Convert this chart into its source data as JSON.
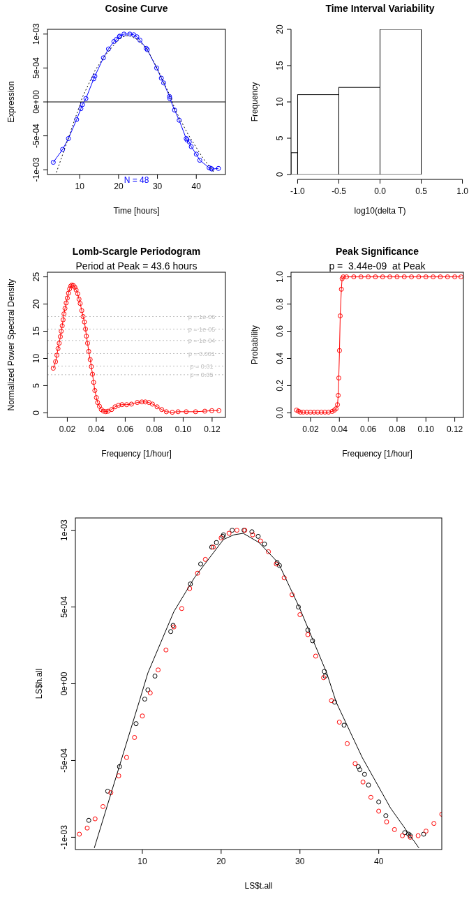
{
  "chart_data": [
    {
      "type": "line",
      "title": "Cosine Curve",
      "xlabel": "Time [hours]",
      "ylabel": "Expression",
      "annotations": [
        "N = 48"
      ],
      "xlim": [
        1.7,
        47.5
      ],
      "xticks": [
        10,
        20,
        30,
        40
      ],
      "ylim": [
        -0.00107,
        0.00107
      ],
      "yticks": [
        {
          "value": -0.001,
          "label": "-1e-03"
        },
        {
          "value": -0.0005,
          "label": "-5e-04"
        },
        {
          "value": 0,
          "label": "0e+00"
        },
        {
          "value": 0.0005,
          "label": "5e-04"
        },
        {
          "value": 0.001,
          "label": "1e-03"
        }
      ],
      "ref_lines": [
        {
          "axis": "y",
          "value": 0,
          "color": "#000000"
        }
      ],
      "series": [
        {
          "color": "#0000ff",
          "marker": "circle",
          "x": [
            3.2,
            5.6,
            7.1,
            9.2,
            10.3,
            10.7,
            11.6,
            13.6,
            13.9,
            16.1,
            17.4,
            18.8,
            19.4,
            20.2,
            20.3,
            21.4,
            22.9,
            23.9,
            24.7,
            25.5,
            27.1,
            27.4,
            29.8,
            31.0,
            31.6,
            33.1,
            33.2,
            34.4,
            35.6,
            37.4,
            37.6,
            38.2,
            38.7,
            40.0,
            40.9,
            43.3,
            43.8,
            44.0,
            45.7
          ],
          "values": [
            -0.00089,
            -0.0007,
            -0.00054,
            -0.00026,
            -0.0001,
            -4e-05,
            5e-05,
            0.00034,
            0.00038,
            0.00065,
            0.00078,
            0.00089,
            0.00092,
            0.00096,
            0.00097,
            0.001,
            0.001,
            0.00099,
            0.00096,
            0.00091,
            0.00079,
            0.00077,
            0.0005,
            0.00035,
            0.00028,
            8e-05,
            5e-05,
            -0.00012,
            -0.00027,
            -0.00054,
            -0.00056,
            -0.00059,
            -0.00066,
            -0.00077,
            -0.00086,
            -0.00097,
            -0.00098,
            -0.00099,
            -0.00098
          ]
        },
        {
          "color": "#000000",
          "line_style": "dotted",
          "x": [
            4.0,
            9.7,
            10.7,
            14.0,
            16.6,
            20.3,
            21.6,
            22.8,
            24.8,
            27.2,
            29.9,
            33.4,
            34.6,
            37.9,
            40.3,
            41.5,
            44.7
          ],
          "values": [
            -0.00104,
            -0.0001,
            7e-05,
            0.00047,
            0.00069,
            0.00094,
            0.00097,
            0.00098,
            0.00092,
            0.00079,
            0.0005,
            7e-05,
            -0.00012,
            -0.00048,
            -0.0007,
            -0.00081,
            -0.00105
          ]
        }
      ]
    },
    {
      "type": "histogram",
      "title": "Time Interval Variability",
      "xlabel": "log10(delta T)",
      "ylabel": "Frequency",
      "xlim": [
        -1.08,
        1.08
      ],
      "xticks": [
        {
          "value": -1,
          "label": "-1.0"
        },
        -0.5,
        {
          "value": 0,
          "label": "0.0"
        },
        0.5,
        {
          "value": 1,
          "label": "1.0"
        }
      ],
      "ylim": [
        0,
        20
      ],
      "yticks": [
        0,
        5,
        10,
        15,
        20
      ],
      "bins": [
        -1.08,
        -1,
        -0.5,
        0,
        0.5
      ],
      "values": [
        3,
        11,
        12,
        20
      ],
      "color": "#ffffff"
    },
    {
      "type": "line",
      "title": "Lomb-Scargle Periodogram",
      "subtitle": "Period at Peak = 43.6 hours",
      "xlabel": "Frequency [1/hour]",
      "ylabel": "Normalized Power Spectral Density",
      "xlim": [
        0.0063,
        0.1292
      ],
      "xticks": [
        0.02,
        0.04,
        0.06,
        0.08,
        {
          "value": 0.1,
          "label": "0.10"
        },
        0.12
      ],
      "ylim": [
        -0.85,
        25.85
      ],
      "yticks": [
        0,
        5,
        10,
        15,
        20,
        25
      ],
      "ref_lines": [
        {
          "axis": "y",
          "value": 17.7,
          "color": "#bebebe",
          "line_style": "dotted"
        },
        {
          "axis": "y",
          "value": 15.4,
          "color": "#bebebe",
          "line_style": "dotted"
        },
        {
          "axis": "y",
          "value": 13.3,
          "color": "#bebebe",
          "line_style": "dotted"
        },
        {
          "axis": "y",
          "value": 10.9,
          "color": "#bebebe",
          "line_style": "dotted"
        },
        {
          "axis": "y",
          "value": 8.6,
          "color": "#bebebe",
          "line_style": "dotted"
        },
        {
          "axis": "y",
          "value": 7.0,
          "color": "#bebebe",
          "line_style": "dotted"
        }
      ],
      "annotations": [
        {
          "text": "p = 1e-06",
          "y": 17.7
        },
        {
          "text": "p = 1e-05",
          "y": 15.4
        },
        {
          "text": "p = 1e-04",
          "y": 13.3
        },
        {
          "text": "p = 0.001",
          "y": 10.9
        },
        {
          "text": "p = 0.01",
          "y": 8.6
        },
        {
          "text": "p = 0.05",
          "y": 7.0
        }
      ],
      "series": [
        {
          "color": "#ff0000",
          "marker": "circle",
          "x": [
            0.0103,
            0.0119,
            0.0128,
            0.0136,
            0.0144,
            0.0152,
            0.0158,
            0.0165,
            0.0171,
            0.0177,
            0.0184,
            0.0192,
            0.02,
            0.0208,
            0.0216,
            0.0224,
            0.0232,
            0.0242,
            0.0252,
            0.0261,
            0.0272,
            0.0281,
            0.0289,
            0.03,
            0.0309,
            0.0318,
            0.0326,
            0.0332,
            0.034,
            0.0348,
            0.0358,
            0.0366,
            0.0374,
            0.0382,
            0.039,
            0.0401,
            0.0409,
            0.0422,
            0.0435,
            0.045,
            0.0466,
            0.0482,
            0.0506,
            0.053,
            0.0554,
            0.0578,
            0.061,
            0.0643,
            0.0683,
            0.0715,
            0.0739,
            0.0764,
            0.0788,
            0.082,
            0.0852,
            0.0884,
            0.0925,
            0.0965,
            0.1021,
            0.1086,
            0.115,
            0.1198,
            0.1247
          ],
          "values": [
            8.2,
            9.4,
            10.6,
            11.8,
            12.8,
            14.0,
            15.0,
            16.0,
            17.1,
            18.2,
            19.2,
            20.2,
            21.1,
            22.0,
            22.8,
            23.3,
            23.5,
            23.4,
            23.1,
            22.6,
            21.9,
            20.9,
            20.1,
            18.8,
            17.7,
            16.7,
            15.4,
            14.1,
            12.8,
            11.3,
            9.8,
            8.5,
            7.1,
            5.6,
            4.1,
            2.8,
            1.9,
            1.2,
            0.6,
            0.3,
            0.2,
            0.3,
            0.6,
            1.1,
            1.4,
            1.5,
            1.5,
            1.6,
            1.9,
            2.0,
            2.0,
            1.9,
            1.6,
            1.1,
            0.6,
            0.2,
            0.1,
            0.2,
            0.2,
            0.2,
            0.3,
            0.4,
            0.4
          ]
        }
      ]
    },
    {
      "type": "line",
      "title": "Peak Significance",
      "subtitle": "p =  3.44e-09  at Peak",
      "xlabel": "Frequency [1/hour]",
      "ylabel": "Probability",
      "xlim": [
        0.0065,
        0.126
      ],
      "xticks": [
        0.02,
        0.04,
        0.06,
        0.08,
        {
          "value": 0.1,
          "label": "0.10"
        },
        0.12
      ],
      "ylim": [
        -0.034,
        1.034
      ],
      "yticks": [
        {
          "value": 0,
          "label": "0.0"
        },
        0.2,
        0.4,
        0.6,
        0.8,
        {
          "value": 1,
          "label": "1.0"
        }
      ],
      "series": [
        {
          "color": "#ff0000",
          "marker": "circle",
          "x": [
            0.0103,
            0.0116,
            0.013,
            0.015,
            0.0175,
            0.02,
            0.0225,
            0.025,
            0.0275,
            0.03,
            0.0325,
            0.035,
            0.0366,
            0.0377,
            0.0387,
            0.0392,
            0.0396,
            0.0401,
            0.0406,
            0.0414,
            0.0419,
            0.0427,
            0.045,
            0.05,
            0.055,
            0.06,
            0.065,
            0.07,
            0.075,
            0.08,
            0.085,
            0.09,
            0.095,
            0.1,
            0.105,
            0.11,
            0.115,
            0.12,
            0.1243
          ],
          "values": [
            0.02,
            0.012,
            0.005,
            0.005,
            0.005,
            0.005,
            0.005,
            0.005,
            0.005,
            0.005,
            0.005,
            0.01,
            0.02,
            0.03,
            0.06,
            0.128,
            0.256,
            0.458,
            0.713,
            0.909,
            0.986,
            1.0,
            1.0,
            1.0,
            1.0,
            1.0,
            1.0,
            1.0,
            1.0,
            1.0,
            1.0,
            1.0,
            1.0,
            1.0,
            1.0,
            1.0,
            1.0,
            1.0,
            1.0
          ]
        }
      ]
    },
    {
      "type": "scatter",
      "xlabel": "LS$t.all",
      "ylabel": "LS$h.all",
      "xlim": [
        1.5,
        48
      ],
      "xticks": [
        10,
        20,
        30,
        40
      ],
      "ylim": [
        -0.00108,
        0.00108
      ],
      "yticks": [
        {
          "value": -0.001,
          "label": "-1e-03"
        },
        {
          "value": -0.0005,
          "label": "-5e-04"
        },
        {
          "value": 0,
          "label": "0e+00"
        },
        {
          "value": 0.0005,
          "label": "5e-04"
        },
        {
          "value": 0.001,
          "label": "1e-03"
        }
      ],
      "series": [
        {
          "color": "#000000",
          "marker": "circle",
          "x": [
            3.2,
            5.6,
            7.1,
            9.2,
            10.3,
            10.7,
            11.6,
            13.6,
            13.9,
            16.1,
            17.4,
            18.8,
            19.4,
            20.2,
            20.3,
            21.4,
            22.9,
            23.9,
            24.7,
            25.5,
            27.1,
            27.4,
            29.8,
            31.0,
            31.6,
            33.1,
            33.2,
            34.4,
            35.6,
            37.4,
            37.6,
            38.2,
            38.7,
            40.0,
            40.9,
            43.3,
            43.8,
            44.0,
            45.7
          ],
          "values": [
            -0.00089,
            -0.0007,
            -0.00054,
            -0.00026,
            -0.0001,
            -4e-05,
            5e-05,
            0.00034,
            0.00038,
            0.00065,
            0.00078,
            0.00089,
            0.00092,
            0.00096,
            0.00097,
            0.001,
            0.001,
            0.00099,
            0.00096,
            0.00091,
            0.00079,
            0.00077,
            0.0005,
            0.00035,
            0.00028,
            8e-05,
            5e-05,
            -0.00012,
            -0.00027,
            -0.00054,
            -0.00056,
            -0.00059,
            -0.00066,
            -0.00077,
            -0.00086,
            -0.00097,
            -0.00098,
            -0.00099,
            -0.00098
          ]
        },
        {
          "color": "#ff0000",
          "marker": "circle",
          "x": [
            2,
            3,
            4,
            5,
            6,
            7,
            8,
            9,
            10,
            11,
            12,
            13,
            14,
            15,
            16,
            17,
            18,
            19,
            20,
            21,
            22,
            23,
            24,
            25,
            26,
            27,
            28,
            29,
            30,
            31,
            32,
            33,
            34,
            35,
            36,
            37,
            38,
            39,
            40,
            41,
            42,
            43,
            44,
            45,
            46,
            47,
            48
          ],
          "values": [
            -0.00098,
            -0.00094,
            -0.00088,
            -0.0008,
            -0.00071,
            -0.0006,
            -0.00048,
            -0.00035,
            -0.00021,
            -6e-05,
            9e-05,
            0.00022,
            0.00037,
            0.00049,
            0.00062,
            0.00072,
            0.00081,
            0.00089,
            0.00095,
            0.00098,
            0.001,
            0.001,
            0.00097,
            0.00093,
            0.00086,
            0.00078,
            0.00069,
            0.00058,
            0.00045,
            0.00032,
            0.00018,
            4e-05,
            -0.00011,
            -0.00025,
            -0.00039,
            -0.00052,
            -0.00064,
            -0.00074,
            -0.00083,
            -0.0009,
            -0.00095,
            -0.00099,
            -0.001,
            -0.00099,
            -0.00096,
            -0.00091,
            -0.00085
          ]
        },
        {
          "type": "line",
          "color": "#000000",
          "x": [
            3.9,
            9.7,
            10.7,
            14.0,
            16.6,
            20.3,
            21.6,
            22.8,
            24.8,
            27.2,
            27.6,
            29.9,
            33.4,
            34.6,
            37.9,
            40.3,
            41.5,
            45.1
          ],
          "values": [
            -0.00107,
            -0.0001,
            7e-05,
            0.00047,
            0.00069,
            0.00094,
            0.00097,
            0.00098,
            0.00092,
            0.00079,
            0.00075,
            0.0005,
            7e-05,
            -0.00012,
            -0.00048,
            -0.0007,
            -0.00081,
            -0.00107
          ]
        }
      ]
    }
  ]
}
